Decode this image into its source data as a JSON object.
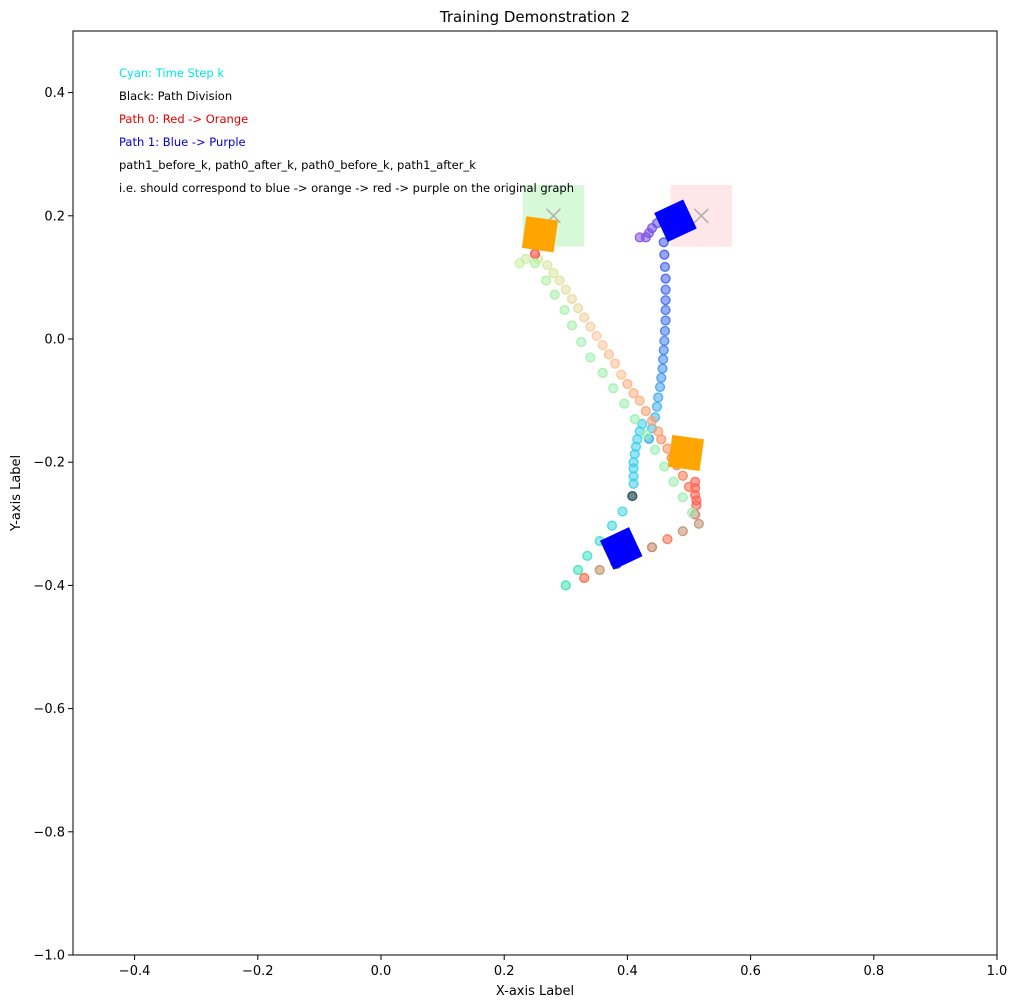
{
  "chart_data": {
    "type": "scatter",
    "title": "Training Demonstration 2",
    "xlabel": "X-axis Label",
    "ylabel": "Y-axis Label",
    "xlim": [
      -0.5,
      1.0
    ],
    "ylim": [
      -1.0,
      0.5
    ],
    "x_ticks": [
      -0.4,
      -0.2,
      0.0,
      0.2,
      0.4,
      0.6,
      0.8,
      1.0
    ],
    "y_ticks": [
      -1.0,
      -0.8,
      -0.6,
      -0.4,
      -0.2,
      0.0,
      0.2,
      0.4
    ],
    "x_tick_labels": [
      "−0.4",
      "−0.2",
      "0.0",
      "0.2",
      "0.4",
      "0.6",
      "0.8",
      "1.0"
    ],
    "y_tick_labels": [
      "−1.0",
      "−0.8",
      "−0.6",
      "−0.4",
      "−0.2",
      "0.0",
      "0.2",
      "0.4"
    ],
    "grid": false,
    "annotations": [
      {
        "text": "Cyan: Time Step k",
        "color": "#00e5ee"
      },
      {
        "text": "Black: Path Division",
        "color": "#000000"
      },
      {
        "text": "Path 0: Red -> Orange",
        "color": "#e00000"
      },
      {
        "text": "Path 1: Blue -> Purple",
        "color": "#0000cc"
      },
      {
        "text": "path1_before_k, path0_after_k, path0_before_k, path1_after_k",
        "color": "#000000"
      },
      {
        "text": "i.e. should correspond to blue -> orange -> red -> purple on the original graph",
        "color": "#000000"
      }
    ],
    "goal_regions": [
      {
        "center": [
          0.28,
          0.2
        ],
        "half_size": 0.05,
        "color": "#90ee90",
        "marker": "x"
      },
      {
        "center": [
          0.52,
          0.2
        ],
        "half_size": 0.05,
        "color": "#ffb6c1",
        "marker": "x"
      }
    ],
    "squares": [
      {
        "x": 0.258,
        "y": 0.17,
        "angle": 8,
        "color": "#ffa500"
      },
      {
        "x": 0.495,
        "y": -0.185,
        "angle": 8,
        "color": "#ffa500"
      },
      {
        "x": 0.478,
        "y": 0.192,
        "angle": -25,
        "color": "#0000ff"
      },
      {
        "x": 0.39,
        "y": -0.34,
        "angle": -25,
        "color": "#0000ff"
      }
    ],
    "series": [
      {
        "name": "Path 1: Blue -> Purple",
        "points": [
          [
            0.3,
            -0.4,
            "#40e0b0"
          ],
          [
            0.32,
            -0.375,
            "#40e0c0"
          ],
          [
            0.335,
            -0.352,
            "#40e0c8"
          ],
          [
            0.355,
            -0.328,
            "#40d8d8"
          ],
          [
            0.375,
            -0.303,
            "#40d8e0"
          ],
          [
            0.392,
            -0.28,
            "#40d8e0"
          ],
          [
            0.408,
            -0.255,
            "#40d0e8"
          ],
          [
            0.41,
            -0.235,
            "#40d0e8"
          ],
          [
            0.41,
            -0.223,
            "#40d0e8"
          ],
          [
            0.41,
            -0.21,
            "#40d0e8"
          ],
          [
            0.41,
            -0.2,
            "#40d0e8"
          ],
          [
            0.412,
            -0.187,
            "#40d0e8"
          ],
          [
            0.414,
            -0.175,
            "#40d0e8"
          ],
          [
            0.416,
            -0.163,
            "#40d0e8"
          ],
          [
            0.42,
            -0.15,
            "#40d0e8"
          ],
          [
            0.424,
            -0.138,
            "#40d0e8"
          ],
          [
            0.435,
            -0.162,
            "#1ea8e8"
          ],
          [
            0.44,
            -0.145,
            "#40c0f0"
          ],
          [
            0.445,
            -0.127,
            "#40b8f0"
          ],
          [
            0.448,
            -0.11,
            "#40b0f0"
          ],
          [
            0.45,
            -0.095,
            "#40a8f0"
          ],
          [
            0.453,
            -0.078,
            "#40a0f0"
          ],
          [
            0.455,
            -0.063,
            "#4098f0"
          ],
          [
            0.457,
            -0.048,
            "#4090f0"
          ],
          [
            0.458,
            -0.033,
            "#4088f0"
          ],
          [
            0.459,
            -0.018,
            "#4080f0"
          ],
          [
            0.46,
            -0.003,
            "#4080f0"
          ],
          [
            0.461,
            0.013,
            "#4078f0"
          ],
          [
            0.462,
            0.03,
            "#4070f0"
          ],
          [
            0.462,
            0.047,
            "#4070f0"
          ],
          [
            0.462,
            0.063,
            "#4068f0"
          ],
          [
            0.462,
            0.08,
            "#4068f0"
          ],
          [
            0.462,
            0.098,
            "#4060f0"
          ],
          [
            0.461,
            0.117,
            "#4060f0"
          ],
          [
            0.46,
            0.137,
            "#4058f0"
          ],
          [
            0.459,
            0.157,
            "#4058f0"
          ],
          [
            0.448,
            0.188,
            "#6050f0"
          ],
          [
            0.44,
            0.18,
            "#7050e8"
          ],
          [
            0.435,
            0.172,
            "#7850e8"
          ],
          [
            0.43,
            0.165,
            "#8050e0"
          ],
          [
            0.42,
            0.165,
            "#8050e0"
          ]
        ]
      },
      {
        "name": "Path 0: Red -> Orange",
        "points": [
          [
            0.33,
            -0.388,
            "#ff6040"
          ],
          [
            0.355,
            -0.375,
            "#c09060"
          ],
          [
            0.38,
            -0.363,
            "#a0a060"
          ],
          [
            0.405,
            -0.35,
            "#80b080"
          ],
          [
            0.44,
            -0.338,
            "#c08060"
          ],
          [
            0.465,
            -0.325,
            "#ff7050"
          ],
          [
            0.49,
            -0.312,
            "#c09070"
          ],
          [
            0.516,
            -0.3,
            "#c09070"
          ],
          [
            0.51,
            -0.285,
            "#e07060"
          ],
          [
            0.512,
            -0.27,
            "#ff6050"
          ],
          [
            0.512,
            -0.262,
            "#ff6050"
          ],
          [
            0.51,
            -0.253,
            "#ff6050"
          ],
          [
            0.51,
            -0.242,
            "#ff6050"
          ],
          [
            0.51,
            -0.232,
            "#ff6050"
          ],
          [
            0.5,
            -0.24,
            "#ff7050"
          ],
          [
            0.49,
            -0.222,
            "#ff8050"
          ],
          [
            0.48,
            -0.205,
            "#ff8050"
          ],
          [
            0.472,
            -0.193,
            "#ff8050"
          ],
          [
            0.465,
            -0.178,
            "#ff9060"
          ],
          [
            0.455,
            -0.163,
            "#ff9060"
          ],
          [
            0.45,
            -0.15,
            "#ffa070"
          ],
          [
            0.44,
            -0.133,
            "#ffa070"
          ],
          [
            0.43,
            -0.117,
            "#ffa070"
          ],
          [
            0.42,
            -0.1,
            "#ffb080"
          ],
          [
            0.41,
            -0.088,
            "#ffb080"
          ],
          [
            0.4,
            -0.073,
            "#ffb080"
          ],
          [
            0.39,
            -0.058,
            "#ffc090"
          ],
          [
            0.38,
            -0.04,
            "#ffc090"
          ],
          [
            0.37,
            -0.025,
            "#ffc090"
          ],
          [
            0.36,
            -0.01,
            "#ffc8a0"
          ],
          [
            0.35,
            0.005,
            "#ffc8a0"
          ],
          [
            0.34,
            0.02,
            "#f0d0a0"
          ],
          [
            0.33,
            0.035,
            "#f0d0a0"
          ],
          [
            0.32,
            0.05,
            "#e8d8a0"
          ],
          [
            0.31,
            0.065,
            "#e8d8a0"
          ],
          [
            0.3,
            0.08,
            "#e0e0a0"
          ],
          [
            0.29,
            0.095,
            "#e0e0a0"
          ],
          [
            0.28,
            0.107,
            "#d8e8a0"
          ],
          [
            0.27,
            0.12,
            "#d8e8a0"
          ],
          [
            0.255,
            0.13,
            "#d0e8a0"
          ],
          [
            0.235,
            0.13,
            "#c8f0a0"
          ],
          [
            0.225,
            0.123,
            "#c8f0a0"
          ],
          [
            0.25,
            0.138,
            "#ff4040"
          ]
        ]
      },
      {
        "name": "",
        "points": [
          [
            0.25,
            0.123,
            "#b0f0a0"
          ],
          [
            0.268,
            0.095,
            "#b0f0a0"
          ],
          [
            0.282,
            0.072,
            "#a8f0a8"
          ],
          [
            0.298,
            0.047,
            "#a8f0a8"
          ],
          [
            0.31,
            0.022,
            "#a8f0a8"
          ],
          [
            0.325,
            -0.005,
            "#a0f0b0"
          ],
          [
            0.34,
            -0.03,
            "#a0f0b0"
          ],
          [
            0.36,
            -0.055,
            "#a0f0b0"
          ],
          [
            0.377,
            -0.08,
            "#a0f0b0"
          ],
          [
            0.395,
            -0.105,
            "#98f0b0"
          ],
          [
            0.412,
            -0.13,
            "#98f0b0"
          ],
          [
            0.43,
            -0.155,
            "#98f0b0"
          ],
          [
            0.445,
            -0.18,
            "#98f0b0"
          ],
          [
            0.46,
            -0.207,
            "#98f0b0"
          ],
          [
            0.475,
            -0.232,
            "#98f0b0"
          ],
          [
            0.49,
            -0.257,
            "#98f0b0"
          ],
          [
            0.505,
            -0.282,
            "#98f0b0"
          ]
        ]
      },
      {
        "name": "",
        "points": [
          [
            0.408,
            -0.255,
            "#404040"
          ],
          [
            0.383,
            -0.365,
            "#606060"
          ]
        ]
      }
    ]
  }
}
